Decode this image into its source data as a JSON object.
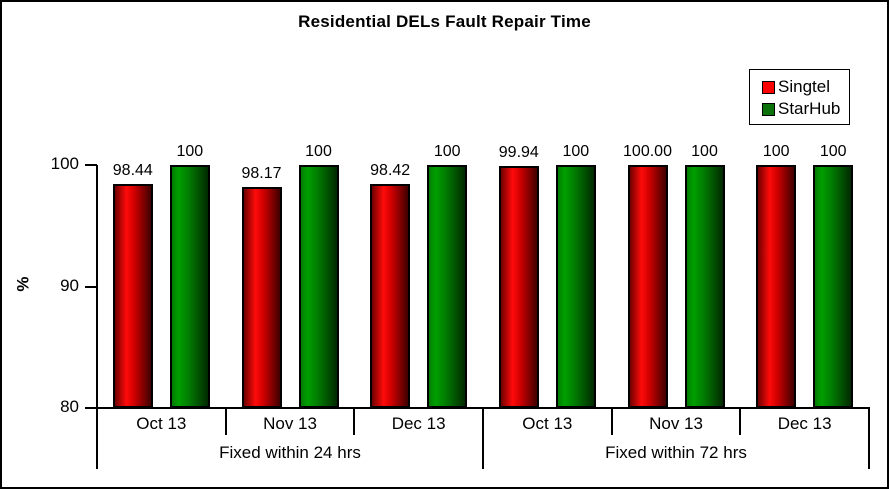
{
  "chart_data": {
    "type": "bar",
    "title": "Residential DELs Fault Repair Time",
    "ylabel": "%",
    "ylim": [
      80,
      100
    ],
    "yticks": [
      100,
      90,
      80
    ],
    "grid": false,
    "legend_position": "top-right",
    "groups": [
      {
        "label": "Fixed within 24 hrs",
        "span": 3
      },
      {
        "label": "Fixed within 72 hrs",
        "span": 3
      }
    ],
    "categories": [
      "Oct 13",
      "Nov 13",
      "Dec 13",
      "Oct 13",
      "Nov 13",
      "Dec 13"
    ],
    "series": [
      {
        "name": "Singtel",
        "color": "#FF0000",
        "gradient_stops": [
          [
            "#6F0000",
            0
          ],
          [
            "#FF0B0B",
            32
          ],
          [
            "#D40000",
            52
          ],
          [
            "#3F0000",
            100
          ]
        ],
        "values": [
          98.44,
          98.17,
          98.42,
          99.94,
          100.0,
          100
        ],
        "value_labels": [
          "98.44",
          "98.17",
          "98.42",
          "99.94",
          "100.00",
          "100"
        ]
      },
      {
        "name": "StarHub",
        "color": "#0B720B",
        "gradient_stops": [
          [
            "#017C01",
            0
          ],
          [
            "#00A000",
            18
          ],
          [
            "#017A01",
            48
          ],
          [
            "#012901",
            100
          ]
        ],
        "values": [
          100,
          100,
          100,
          100,
          100,
          100
        ],
        "value_labels": [
          "100",
          "100",
          "100",
          "100",
          "100",
          "100"
        ]
      }
    ],
    "colors": {
      "axis": "#000000",
      "text": "#000000",
      "background": "#FFFFFF"
    }
  }
}
